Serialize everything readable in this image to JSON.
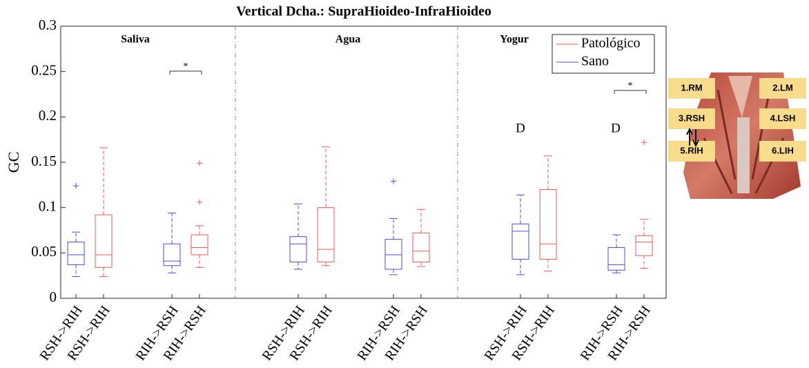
{
  "chart_data": {
    "type": "box",
    "title": "Vertical Dcha.: SupraHioideo-InfraHioideo",
    "ylabel": "GC",
    "ylim": [
      0,
      0.3
    ],
    "yticks": [
      0,
      0.05,
      0.1,
      0.15,
      0.2,
      0.25,
      0.3
    ],
    "panels": [
      "Saliva",
      "Agua",
      "Yogur"
    ],
    "categories": [
      "RSH->RIH",
      "RIH->RSH",
      "RSH->RIH",
      "RIH->RSH",
      "RSH->RIH",
      "RIH->RSH"
    ],
    "legend": "upper right",
    "series": [
      {
        "name": "Patológico",
        "color": "#f05a5a",
        "boxes": [
          {
            "min": 0.024,
            "q1": 0.034,
            "median": 0.048,
            "q3": 0.092,
            "max": 0.166,
            "outliers": []
          },
          {
            "min": 0.034,
            "q1": 0.048,
            "median": 0.056,
            "q3": 0.07,
            "max": 0.08,
            "outliers": [
              0.106,
              0.149
            ]
          },
          {
            "min": 0.036,
            "q1": 0.04,
            "median": 0.054,
            "q3": 0.1,
            "max": 0.167,
            "outliers": []
          },
          {
            "min": 0.035,
            "q1": 0.04,
            "median": 0.052,
            "q3": 0.072,
            "max": 0.098,
            "outliers": []
          },
          {
            "min": 0.03,
            "q1": 0.043,
            "median": 0.06,
            "q3": 0.12,
            "max": 0.157,
            "outliers": []
          },
          {
            "min": 0.033,
            "q1": 0.047,
            "median": 0.062,
            "q3": 0.069,
            "max": 0.087,
            "outliers": [
              0.172
            ]
          }
        ]
      },
      {
        "name": "Sano",
        "color": "#4a4af0",
        "boxes": [
          {
            "min": 0.024,
            "q1": 0.037,
            "median": 0.048,
            "q3": 0.062,
            "max": 0.073,
            "outliers": [
              0.124
            ]
          },
          {
            "min": 0.028,
            "q1": 0.036,
            "median": 0.041,
            "q3": 0.06,
            "max": 0.094,
            "outliers": []
          },
          {
            "min": 0.032,
            "q1": 0.04,
            "median": 0.06,
            "q3": 0.068,
            "max": 0.104,
            "outliers": []
          },
          {
            "min": 0.026,
            "q1": 0.032,
            "median": 0.048,
            "q3": 0.065,
            "max": 0.088,
            "outliers": [
              0.129
            ]
          },
          {
            "min": 0.026,
            "q1": 0.043,
            "median": 0.074,
            "q3": 0.082,
            "max": 0.114,
            "outliers": []
          },
          {
            "min": 0.028,
            "q1": 0.031,
            "median": 0.037,
            "q3": 0.056,
            "max": 0.07,
            "outliers": []
          }
        ]
      }
    ],
    "annotations": [
      "*",
      "*",
      "D",
      "D"
    ]
  },
  "figure_labels": [
    "1.RM",
    "2.LM",
    "3.RSH",
    "4.LSH",
    "5.RIH",
    "6.LIH"
  ]
}
